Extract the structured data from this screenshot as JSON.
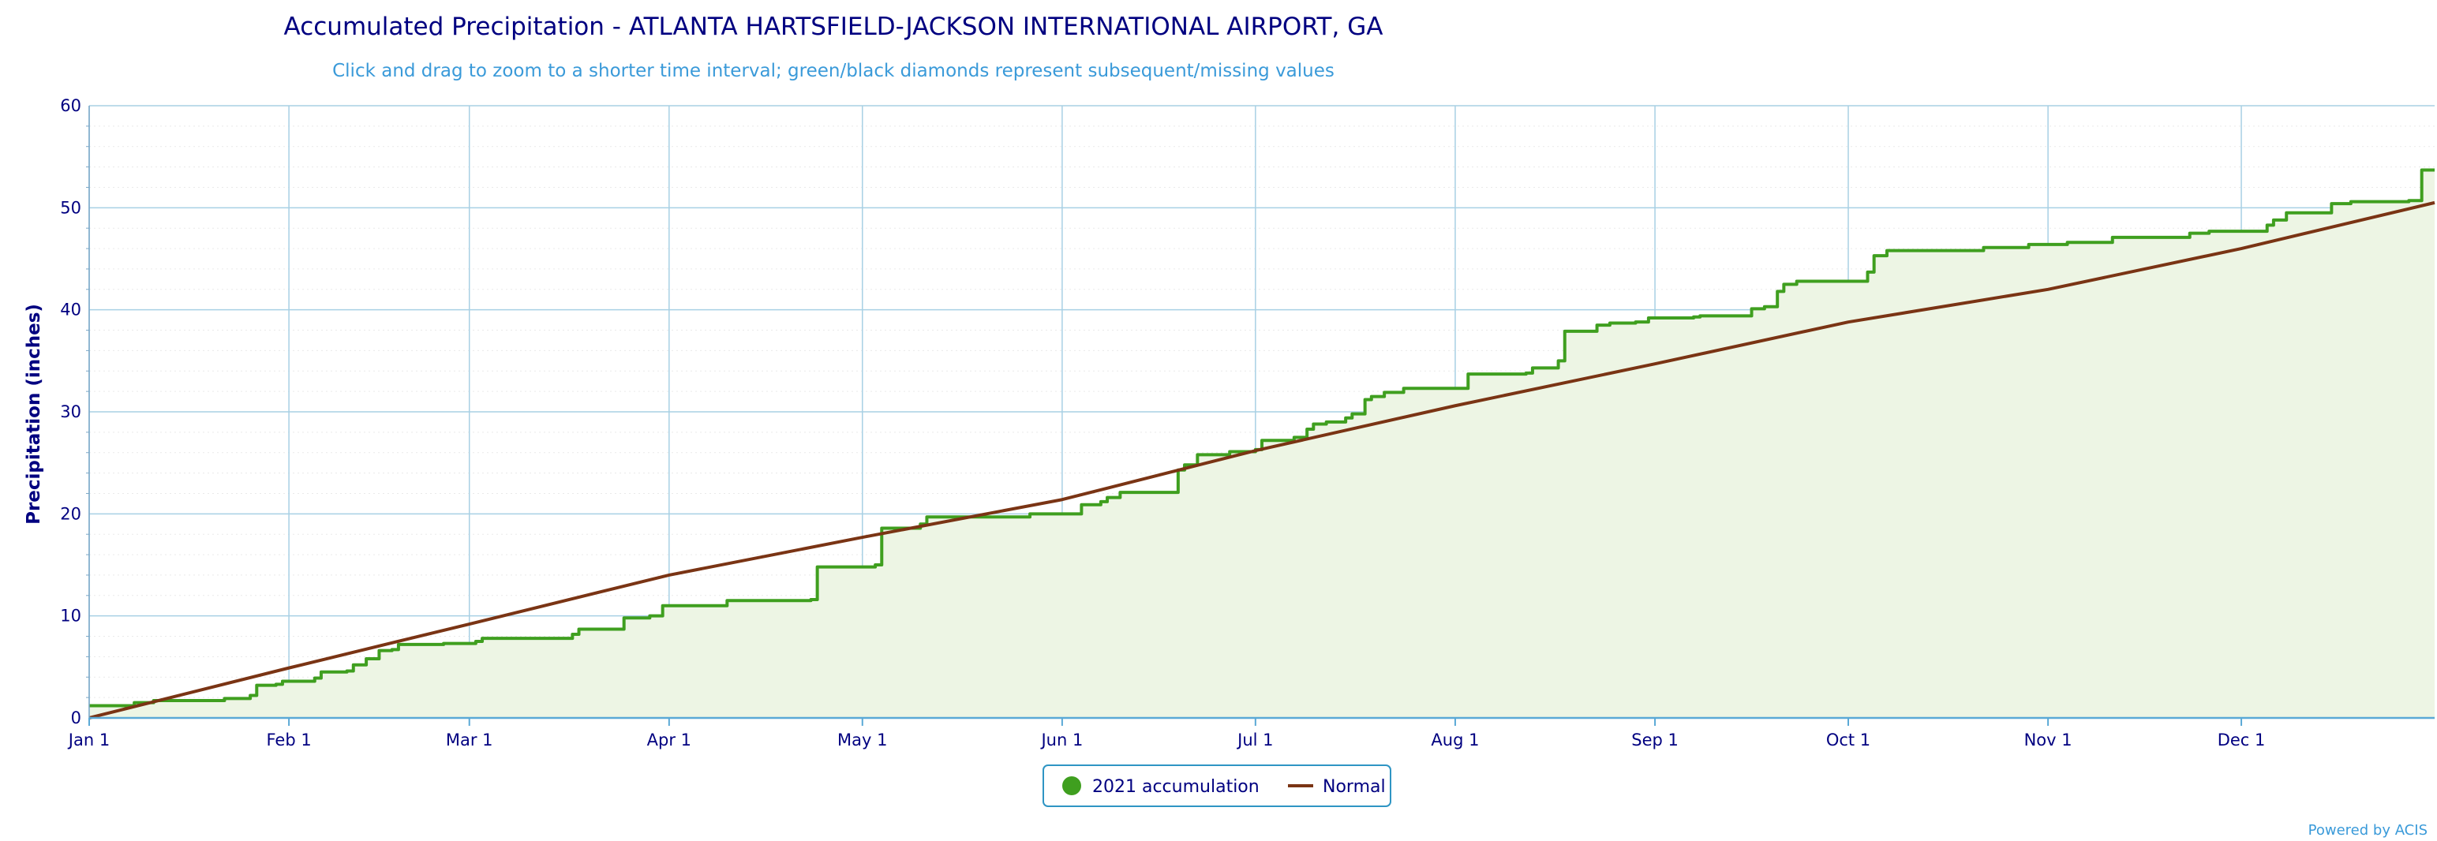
{
  "chart_data": {
    "type": "line",
    "title": "Accumulated Precipitation - ATLANTA HARTSFIELD-JACKSON INTERNATIONAL AIRPORT, GA",
    "subtitle": "Click and drag to zoom to a shorter time interval; green/black diamonds represent subsequent/missing values",
    "xlabel": "",
    "ylabel": "Precipitation (inches)",
    "xlim": [
      "2021-01-01",
      "2021-12-31"
    ],
    "ylim": [
      0,
      60
    ],
    "x_ticks": [
      {
        "date": "2021-01-01",
        "label": "Jan 1"
      },
      {
        "date": "2021-02-01",
        "label": "Feb 1"
      },
      {
        "date": "2021-03-01",
        "label": "Mar 1"
      },
      {
        "date": "2021-04-01",
        "label": "Apr 1"
      },
      {
        "date": "2021-05-01",
        "label": "May 1"
      },
      {
        "date": "2021-06-01",
        "label": "Jun 1"
      },
      {
        "date": "2021-07-01",
        "label": "Jul 1"
      },
      {
        "date": "2021-08-01",
        "label": "Aug 1"
      },
      {
        "date": "2021-09-01",
        "label": "Sep 1"
      },
      {
        "date": "2021-10-01",
        "label": "Oct 1"
      },
      {
        "date": "2021-11-01",
        "label": "Nov 1"
      },
      {
        "date": "2021-12-01",
        "label": "Dec 1"
      }
    ],
    "y_ticks": [
      0,
      10,
      20,
      30,
      40,
      50,
      60
    ],
    "grid": true,
    "legend_position": "bottom-center",
    "series": [
      {
        "name": "2021 accumulation",
        "color": "#3f9f1f",
        "fill": "#edf5e4",
        "style": "step",
        "points": [
          [
            "2021-01-01",
            1.2
          ],
          [
            "2021-01-07",
            1.2
          ],
          [
            "2021-01-08",
            1.5
          ],
          [
            "2021-01-11",
            1.7
          ],
          [
            "2021-01-20",
            1.7
          ],
          [
            "2021-01-22",
            1.9
          ],
          [
            "2021-01-25",
            1.9
          ],
          [
            "2021-01-26",
            2.2
          ],
          [
            "2021-01-27",
            3.2
          ],
          [
            "2021-01-30",
            3.3
          ],
          [
            "2021-01-31",
            3.6
          ],
          [
            "2021-02-04",
            3.6
          ],
          [
            "2021-02-05",
            3.9
          ],
          [
            "2021-02-06",
            4.5
          ],
          [
            "2021-02-10",
            4.6
          ],
          [
            "2021-02-11",
            5.2
          ],
          [
            "2021-02-13",
            5.8
          ],
          [
            "2021-02-15",
            6.6
          ],
          [
            "2021-02-17",
            6.7
          ],
          [
            "2021-02-18",
            7.2
          ],
          [
            "2021-02-25",
            7.3
          ],
          [
            "2021-03-02",
            7.5
          ],
          [
            "2021-03-03",
            7.8
          ],
          [
            "2021-03-16",
            7.8
          ],
          [
            "2021-03-17",
            8.2
          ],
          [
            "2021-03-18",
            8.7
          ],
          [
            "2021-03-24",
            8.7
          ],
          [
            "2021-03-25",
            9.8
          ],
          [
            "2021-03-29",
            10.0
          ],
          [
            "2021-03-31",
            11.0
          ],
          [
            "2021-04-09",
            11.0
          ],
          [
            "2021-04-10",
            11.5
          ],
          [
            "2021-04-23",
            11.6
          ],
          [
            "2021-04-24",
            14.8
          ],
          [
            "2021-04-30",
            14.8
          ],
          [
            "2021-05-03",
            15.0
          ],
          [
            "2021-05-04",
            18.6
          ],
          [
            "2021-05-09",
            18.6
          ],
          [
            "2021-05-10",
            19.0
          ],
          [
            "2021-05-11",
            19.7
          ],
          [
            "2021-05-25",
            19.7
          ],
          [
            "2021-05-27",
            20.0
          ],
          [
            "2021-06-03",
            20.0
          ],
          [
            "2021-06-04",
            20.9
          ],
          [
            "2021-06-07",
            21.2
          ],
          [
            "2021-06-08",
            21.6
          ],
          [
            "2021-06-10",
            22.1
          ],
          [
            "2021-06-18",
            22.1
          ],
          [
            "2021-06-19",
            24.3
          ],
          [
            "2021-06-20",
            24.8
          ],
          [
            "2021-06-22",
            25.8
          ],
          [
            "2021-06-27",
            26.1
          ],
          [
            "2021-07-01",
            26.3
          ],
          [
            "2021-07-02",
            27.2
          ],
          [
            "2021-07-07",
            27.5
          ],
          [
            "2021-07-09",
            28.3
          ],
          [
            "2021-07-10",
            28.8
          ],
          [
            "2021-07-12",
            29.0
          ],
          [
            "2021-07-15",
            29.4
          ],
          [
            "2021-07-16",
            29.8
          ],
          [
            "2021-07-18",
            31.2
          ],
          [
            "2021-07-19",
            31.5
          ],
          [
            "2021-07-21",
            31.9
          ],
          [
            "2021-07-24",
            32.3
          ],
          [
            "2021-08-01",
            32.3
          ],
          [
            "2021-08-03",
            33.7
          ],
          [
            "2021-08-12",
            33.8
          ],
          [
            "2021-08-13",
            34.3
          ],
          [
            "2021-08-16",
            34.3
          ],
          [
            "2021-08-17",
            35.0
          ],
          [
            "2021-08-18",
            37.9
          ],
          [
            "2021-08-22",
            37.9
          ],
          [
            "2021-08-23",
            38.5
          ],
          [
            "2021-08-25",
            38.7
          ],
          [
            "2021-08-29",
            38.8
          ],
          [
            "2021-08-31",
            39.2
          ],
          [
            "2021-09-07",
            39.3
          ],
          [
            "2021-09-08",
            39.4
          ],
          [
            "2021-09-14",
            39.4
          ],
          [
            "2021-09-16",
            40.1
          ],
          [
            "2021-09-18",
            40.3
          ],
          [
            "2021-09-20",
            41.8
          ],
          [
            "2021-09-21",
            42.5
          ],
          [
            "2021-09-23",
            42.8
          ],
          [
            "2021-10-01",
            42.8
          ],
          [
            "2021-10-04",
            43.7
          ],
          [
            "2021-10-05",
            45.3
          ],
          [
            "2021-10-07",
            45.8
          ],
          [
            "2021-10-21",
            45.8
          ],
          [
            "2021-10-22",
            46.1
          ],
          [
            "2021-10-28",
            46.1
          ],
          [
            "2021-10-29",
            46.4
          ],
          [
            "2021-11-03",
            46.4
          ],
          [
            "2021-11-04",
            46.6
          ],
          [
            "2021-11-10",
            46.6
          ],
          [
            "2021-11-11",
            47.1
          ],
          [
            "2021-11-22",
            47.1
          ],
          [
            "2021-11-23",
            47.5
          ],
          [
            "2021-11-25",
            47.5
          ],
          [
            "2021-11-26",
            47.7
          ],
          [
            "2021-12-04",
            47.7
          ],
          [
            "2021-12-05",
            48.3
          ],
          [
            "2021-12-06",
            48.8
          ],
          [
            "2021-12-08",
            49.5
          ],
          [
            "2021-12-14",
            49.5
          ],
          [
            "2021-12-15",
            50.4
          ],
          [
            "2021-12-18",
            50.6
          ],
          [
            "2021-12-27",
            50.7
          ],
          [
            "2021-12-29",
            53.7
          ],
          [
            "2021-12-31",
            53.7
          ]
        ]
      },
      {
        "name": "Normal",
        "color": "#7a3414",
        "style": "line",
        "points": [
          [
            "2021-01-01",
            0.0
          ],
          [
            "2021-02-01",
            4.9
          ],
          [
            "2021-03-01",
            9.2
          ],
          [
            "2021-04-01",
            14.0
          ],
          [
            "2021-05-01",
            17.7
          ],
          [
            "2021-06-01",
            21.4
          ],
          [
            "2021-07-01",
            26.2
          ],
          [
            "2021-08-01",
            30.6
          ],
          [
            "2021-09-01",
            34.7
          ],
          [
            "2021-10-01",
            38.8
          ],
          [
            "2021-11-01",
            42.0
          ],
          [
            "2021-12-01",
            46.0
          ],
          [
            "2021-12-31",
            50.5
          ]
        ]
      }
    ]
  },
  "legend": {
    "items": [
      {
        "label": "2021 accumulation",
        "color": "#3f9f1f",
        "marker": "circle"
      },
      {
        "label": "Normal",
        "color": "#7a3414",
        "marker": "line"
      }
    ]
  },
  "credit": "Powered by ACIS"
}
